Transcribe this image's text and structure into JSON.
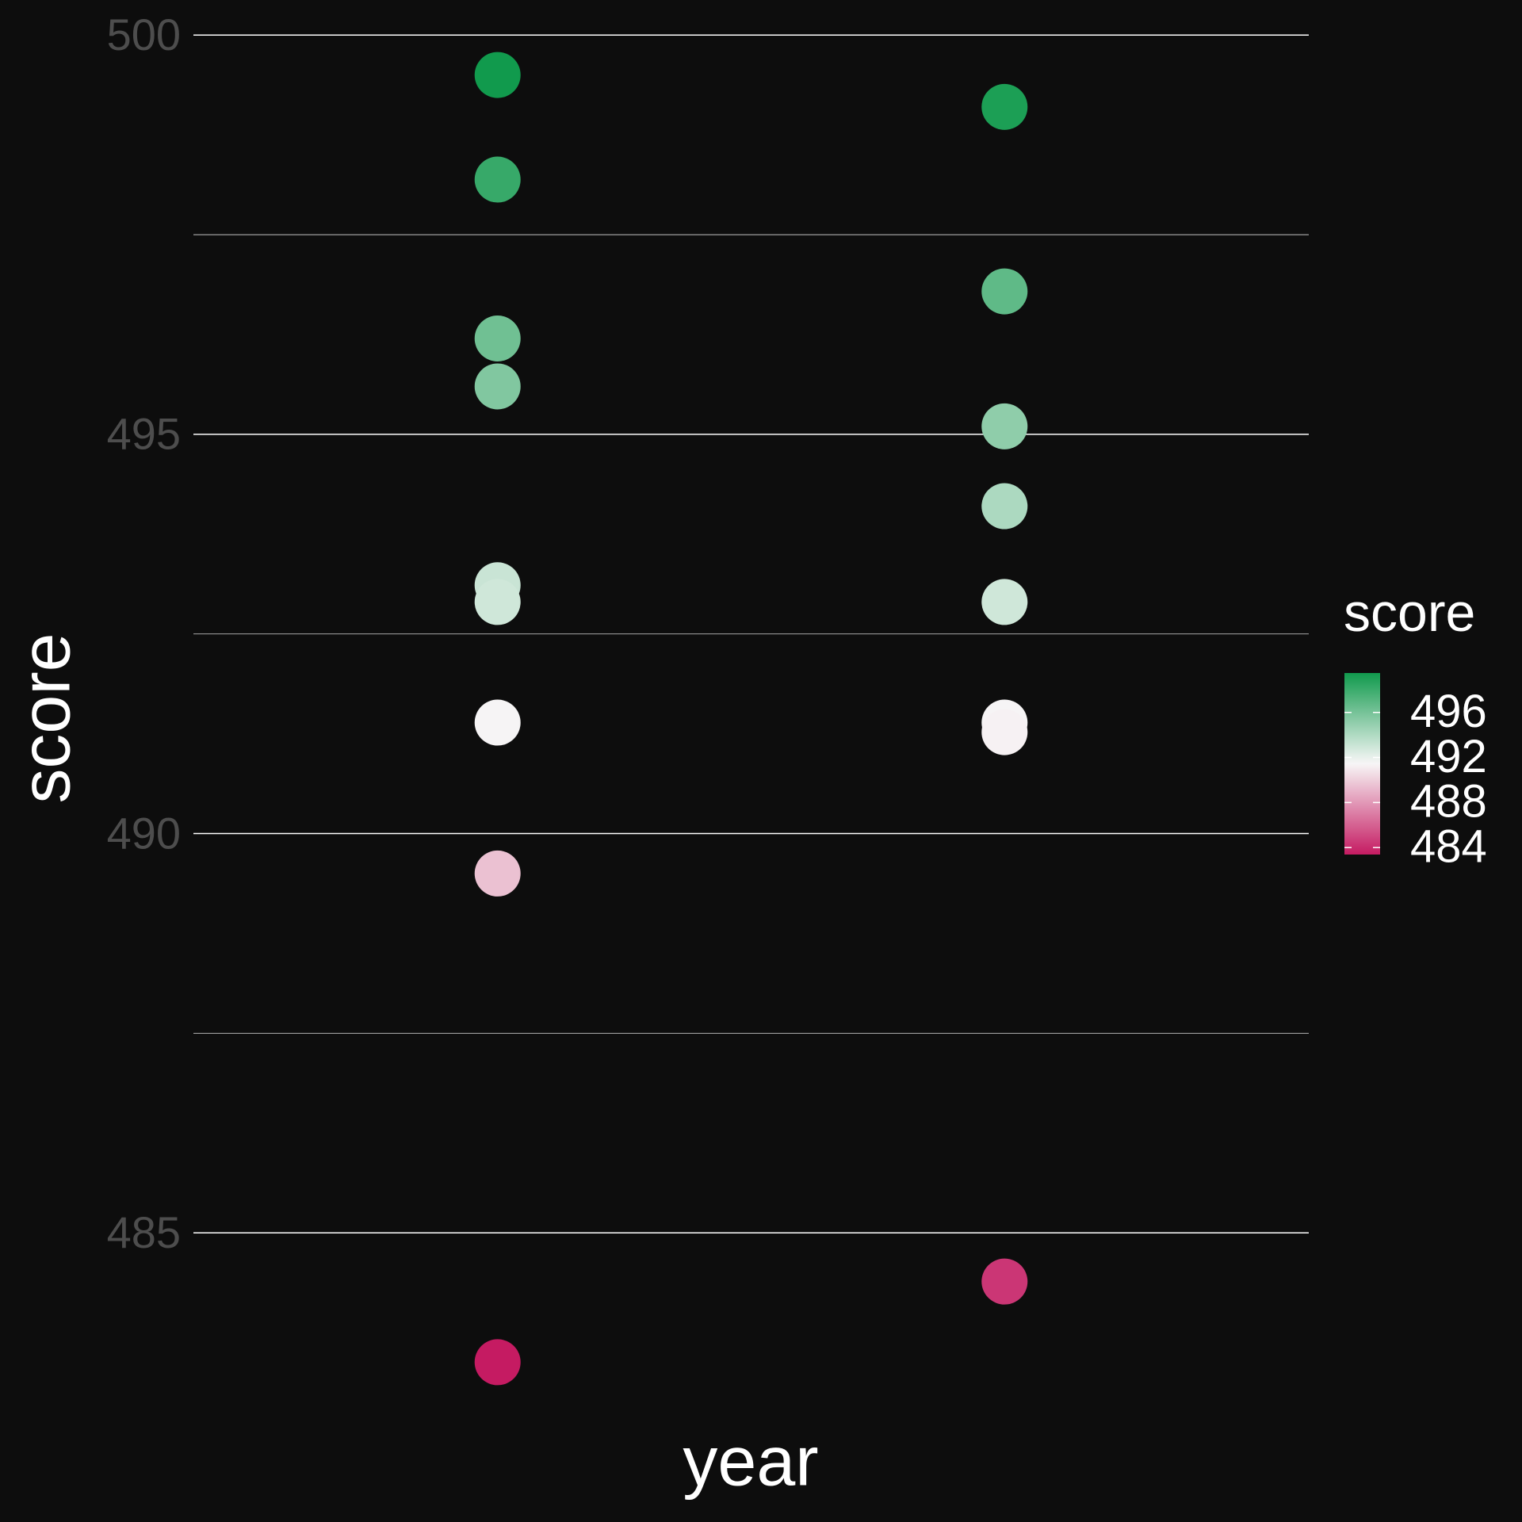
{
  "chart_data": {
    "type": "strip",
    "x_label": "year",
    "y_label": "score",
    "legend_title": "score",
    "categories": [
      null,
      null
    ],
    "values": [
      [
        499.5,
        498.19,
        496.2,
        495.6,
        493.11,
        492.9,
        491.39,
        489.5,
        483.38
      ],
      [
        499.1,
        496.79,
        495.1,
        494.1,
        492.9,
        491.39,
        491.27,
        484.39
      ]
    ],
    "ylim": [
      482.57,
      500.31
    ],
    "yticks": [
      485,
      490,
      495,
      500
    ],
    "yminorticks": [
      487.5,
      492.5,
      497.5
    ],
    "grid": true,
    "color_low": "#c51b62",
    "color_mid": "#f7f7f7",
    "color_high": "#119a4d",
    "color_midpoint": 491.5,
    "colorbar_ticks": [
      484,
      488,
      492,
      496
    ]
  }
}
